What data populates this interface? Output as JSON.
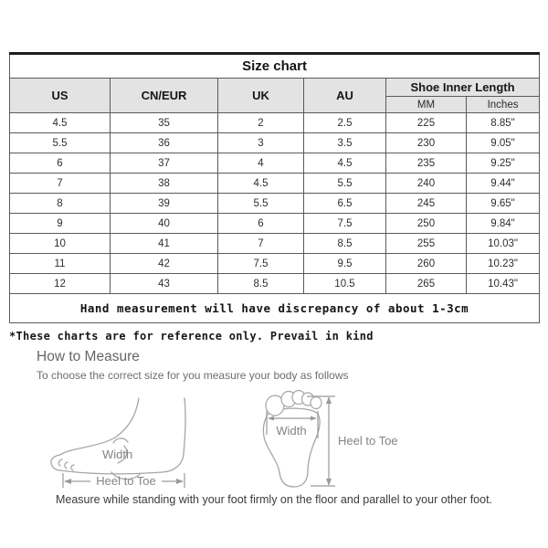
{
  "size_chart": {
    "title": "Size chart",
    "columns": [
      "US",
      "CN/EUR",
      "UK",
      "AU"
    ],
    "group_header": "Shoe Inner Length",
    "sub_columns": [
      "MM",
      "Inches"
    ],
    "rows": [
      [
        "4.5",
        "35",
        "2",
        "2.5",
        "225",
        "8.85\""
      ],
      [
        "5.5",
        "36",
        "3",
        "3.5",
        "230",
        "9.05\""
      ],
      [
        "6",
        "37",
        "4",
        "4.5",
        "235",
        "9.25\""
      ],
      [
        "7",
        "38",
        "4.5",
        "5.5",
        "240",
        "9.44\""
      ],
      [
        "8",
        "39",
        "5.5",
        "6.5",
        "245",
        "9.65\""
      ],
      [
        "9",
        "40",
        "6",
        "7.5",
        "250",
        "9.84\""
      ],
      [
        "10",
        "41",
        "7",
        "8.5",
        "255",
        "10.03\""
      ],
      [
        "11",
        "42",
        "7.5",
        "9.5",
        "260",
        "10.23\""
      ],
      [
        "12",
        "43",
        "8.5",
        "10.5",
        "265",
        "10.43\""
      ]
    ],
    "footnote": "Hand measurement will have discrepancy of about 1-3cm"
  },
  "notes": {
    "reference": "*These charts are for reference only. Prevail in kind"
  },
  "how_to_measure": {
    "heading": "How to Measure",
    "subheading": "To choose the correct size for you measure your body as follows",
    "diagram_labels": {
      "side_width": "Width",
      "side_heel_to_toe": "Heel to Toe",
      "top_width": "Width",
      "top_heel_to_toe": "Heel to Toe"
    },
    "bottom_note": "Measure while standing with your foot firmly on the floor and parallel to your other foot."
  },
  "colors": {
    "header_bg": "#e3e3e3",
    "table_border": "#5a5a5a",
    "diagram_stroke": "#a6a6a6",
    "diagram_text": "#848484"
  }
}
